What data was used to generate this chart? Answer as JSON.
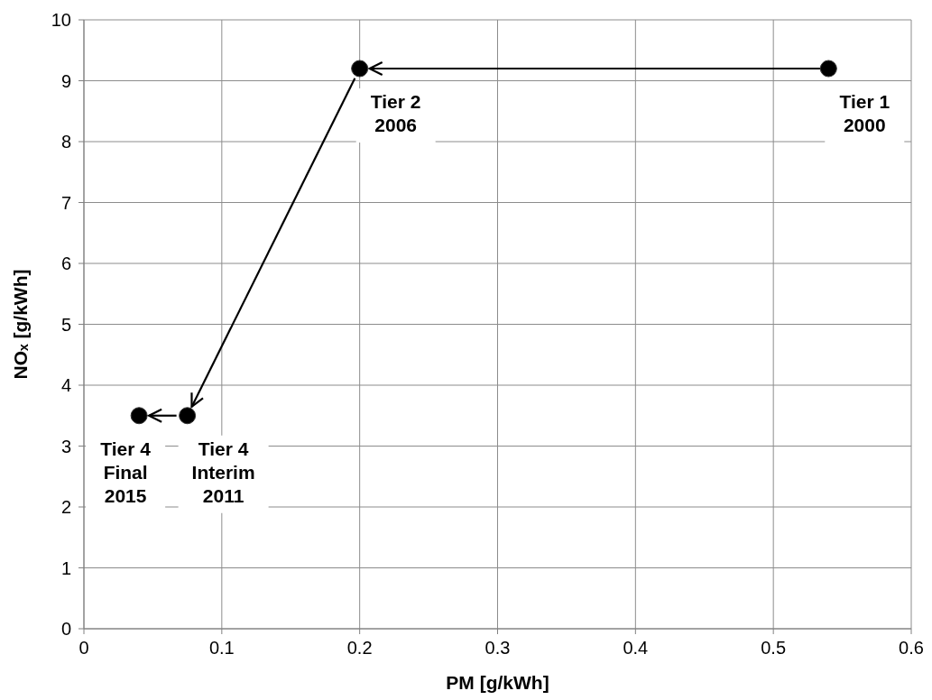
{
  "chart_data": {
    "type": "scatter",
    "xlabel": "PM [g/kWh]",
    "ylabel": "NOₓ [g/kWh]",
    "x": [
      0.54,
      0.2,
      0.075,
      0.04
    ],
    "values": [
      9.2,
      9.2,
      3.5,
      3.5
    ],
    "color": "#000000",
    "marker": "circle",
    "xlim": [
      0,
      0.6
    ],
    "xticks": [
      0,
      0.1,
      0.2,
      0.3,
      0.4,
      0.5,
      0.6
    ],
    "ylim": [
      0,
      10
    ],
    "yticks": [
      0,
      1,
      2,
      3,
      4,
      5,
      6,
      7,
      8,
      9,
      10
    ],
    "grid": true,
    "annotations": [
      {
        "text": "Tier 1\n2000",
        "x": 0.54,
        "y": 9.2
      },
      {
        "text": "Tier 2\n2006",
        "x": 0.2,
        "y": 9.2
      },
      {
        "text": "Tier 4\nInterim\n2011",
        "x": 0.075,
        "y": 3.5
      },
      {
        "text": "Tier 4\nFinal\n2015",
        "x": 0.04,
        "y": 3.5
      }
    ]
  }
}
